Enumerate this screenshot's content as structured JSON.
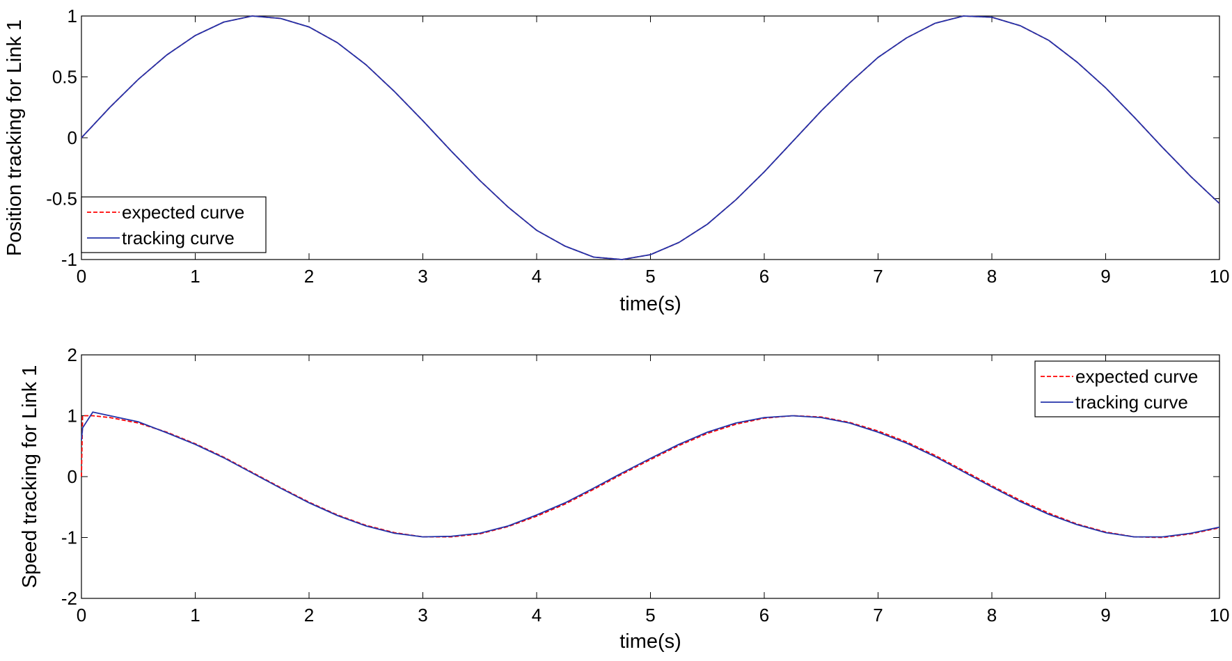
{
  "chart_data": [
    {
      "type": "line",
      "xlabel": "time(s)",
      "ylabel": "Position tracking for Link 1",
      "x": [
        0,
        0.25,
        0.5,
        0.75,
        1,
        1.25,
        1.5,
        1.75,
        2,
        2.25,
        2.5,
        2.75,
        3,
        3.25,
        3.5,
        3.75,
        4,
        4.25,
        4.5,
        4.75,
        5,
        5.25,
        5.5,
        5.75,
        6,
        6.25,
        6.5,
        6.75,
        7,
        7.25,
        7.5,
        7.75,
        8,
        8.25,
        8.5,
        8.75,
        9,
        9.25,
        9.5,
        9.75,
        10
      ],
      "series": [
        {
          "name": "expected curve",
          "color": "#ff0000",
          "dashed": true,
          "values": [
            0,
            0.25,
            0.48,
            0.68,
            0.84,
            0.95,
            1.0,
            0.98,
            0.91,
            0.78,
            0.6,
            0.38,
            0.14,
            -0.11,
            -0.35,
            -0.57,
            -0.76,
            -0.89,
            -0.98,
            -1.0,
            -0.96,
            -0.86,
            -0.71,
            -0.51,
            -0.28,
            -0.03,
            0.22,
            0.45,
            0.66,
            0.82,
            0.94,
            1.0,
            0.99,
            0.92,
            0.8,
            0.62,
            0.41,
            0.17,
            -0.08,
            -0.32,
            -0.54
          ]
        },
        {
          "name": "tracking curve",
          "color": "#2233aa",
          "dashed": false,
          "values": [
            0,
            0.25,
            0.48,
            0.68,
            0.84,
            0.95,
            1.0,
            0.98,
            0.91,
            0.78,
            0.6,
            0.38,
            0.14,
            -0.11,
            -0.35,
            -0.57,
            -0.76,
            -0.89,
            -0.98,
            -1.0,
            -0.96,
            -0.86,
            -0.71,
            -0.51,
            -0.28,
            -0.03,
            0.22,
            0.45,
            0.66,
            0.82,
            0.94,
            1.0,
            0.99,
            0.92,
            0.8,
            0.62,
            0.41,
            0.17,
            -0.08,
            -0.32,
            -0.54
          ]
        }
      ],
      "xlim": [
        0,
        10
      ],
      "ylim": [
        -1,
        1
      ],
      "xticks": [
        0,
        1,
        2,
        3,
        4,
        5,
        6,
        7,
        8,
        9,
        10
      ],
      "yticks": [
        -1,
        -0.5,
        0,
        0.5,
        1
      ],
      "legend": "lower left"
    },
    {
      "type": "line",
      "xlabel": "time(s)",
      "ylabel": "Speed tracking for Link 1",
      "x": [
        0,
        0.01,
        0.1,
        0.25,
        0.5,
        0.75,
        1,
        1.25,
        1.5,
        1.75,
        2,
        2.25,
        2.5,
        2.75,
        3,
        3.25,
        3.5,
        3.75,
        4,
        4.25,
        4.5,
        4.75,
        5,
        5.25,
        5.5,
        5.75,
        6,
        6.25,
        6.5,
        6.75,
        7,
        7.25,
        7.5,
        7.75,
        8,
        8.25,
        8.5,
        8.75,
        9,
        9.25,
        9.5,
        9.75,
        10
      ],
      "series": [
        {
          "name": "expected curve",
          "color": "#ff0000",
          "dashed": true,
          "values": [
            0,
            1,
            1,
            0.97,
            0.88,
            0.73,
            0.54,
            0.32,
            0.07,
            -0.18,
            -0.42,
            -0.63,
            -0.8,
            -0.92,
            -0.99,
            -0.99,
            -0.94,
            -0.82,
            -0.65,
            -0.45,
            -0.21,
            0.04,
            0.28,
            0.51,
            0.71,
            0.86,
            0.96,
            1.0,
            0.98,
            0.89,
            0.75,
            0.57,
            0.35,
            0.1,
            -0.15,
            -0.39,
            -0.6,
            -0.78,
            -0.91,
            -0.99,
            -1.0,
            -0.94,
            -0.84
          ]
        },
        {
          "name": "tracking curve",
          "color": "#2233aa",
          "dashed": false,
          "values": [
            0.6,
            0.8,
            1.06,
            1.0,
            0.9,
            0.72,
            0.53,
            0.31,
            0.06,
            -0.19,
            -0.43,
            -0.64,
            -0.81,
            -0.93,
            -0.99,
            -0.98,
            -0.93,
            -0.81,
            -0.63,
            -0.43,
            -0.19,
            0.06,
            0.3,
            0.53,
            0.73,
            0.88,
            0.97,
            1.0,
            0.97,
            0.88,
            0.73,
            0.55,
            0.33,
            0.08,
            -0.17,
            -0.41,
            -0.62,
            -0.79,
            -0.92,
            -0.99,
            -0.99,
            -0.93,
            -0.83
          ]
        }
      ],
      "xlim": [
        0,
        10
      ],
      "ylim": [
        -2,
        2
      ],
      "xticks": [
        0,
        1,
        2,
        3,
        4,
        5,
        6,
        7,
        8,
        9,
        10
      ],
      "yticks": [
        -2,
        -1,
        0,
        1,
        2
      ],
      "legend": "upper right"
    }
  ]
}
